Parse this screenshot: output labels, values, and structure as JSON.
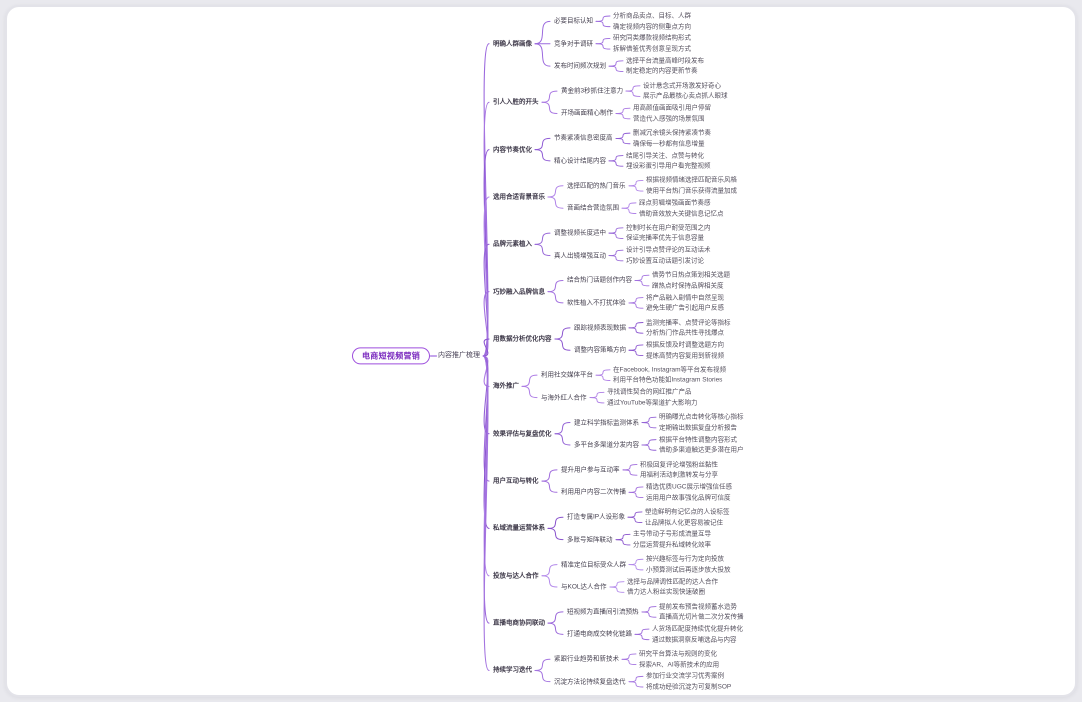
{
  "app": {
    "background": "#e9e9ee",
    "card_bg": "#ffffff",
    "card_border": "#e3e3e9",
    "line_base_color": "#a06ee0"
  },
  "root": {
    "text": "电商短视频营销",
    "border_color": "#9d4edd",
    "text_color": "#7b2cbf"
  },
  "level1": {
    "text": "内容推广梳理"
  },
  "branches": [
    {
      "text": "明确人群画像",
      "color": "#9c6ade",
      "children": [
        {
          "text": "必要目标认知",
          "children": [
            "分析商品卖点、目标、人群",
            "确定视频内容的侧重点方向"
          ]
        },
        {
          "text": "竞争对手调研",
          "children": [
            "研究同类爆款视频结构形式",
            "拆解借鉴优秀创意呈现方式"
          ]
        },
        {
          "text": "发布时间频次规划",
          "children": [
            "选择平台流量高峰时段发布",
            "制定稳定的内容更新节奏"
          ]
        }
      ]
    },
    {
      "text": "引人入胜的开头",
      "color": "#a876e2",
      "children": [
        {
          "text": "黄金前3秒抓住注意力",
          "children": [
            "设计悬念式开场激发好奇心",
            "展示产品最核心卖点抓人眼球"
          ]
        },
        {
          "text": "开场画面精心制作",
          "children": [
            "用高颜值画面吸引用户停留",
            "营造代入感强的场景氛围"
          ]
        }
      ]
    },
    {
      "text": "内容节奏优化",
      "color": "#8f5bd5",
      "children": [
        {
          "text": "节奏紧凑信息密度高",
          "children": [
            "删减冗余镜头保持紧凑节奏",
            "确保每一秒都有信息增量"
          ]
        },
        {
          "text": "精心设计结尾内容",
          "children": [
            "结尾引导关注、点赞与转化",
            "埋设彩蛋引导用户看完整视频"
          ]
        }
      ]
    },
    {
      "text": "选用合适背景音乐",
      "color": "#b083e8",
      "children": [
        {
          "text": "选择匹配的热门音乐",
          "children": [
            "根据视频情绪选择匹配音乐风格",
            "使用平台热门音乐获得流量加成"
          ]
        },
        {
          "text": "音画结合营造氛围",
          "children": [
            "踩点剪辑增强画面节奏感",
            "借助音效放大关键信息记忆点"
          ]
        }
      ]
    },
    {
      "text": "品牌元素植入",
      "color": "#9868d8",
      "children": [
        {
          "text": "调整视频长度适中",
          "children": [
            "控制时长在用户耐受范围之内",
            "保证完播率优先于信息容量"
          ]
        },
        {
          "text": "真人出镜增强互动",
          "children": [
            "设计引导点赞评论的互动话术",
            "巧妙设置互动话题引发讨论"
          ]
        }
      ]
    },
    {
      "text": "巧妙融入品牌信息",
      "color": "#a371df",
      "children": [
        {
          "text": "结合热门话题创作内容",
          "children": [
            "借势节日热点策划相关选题",
            "蹭热点时保持品牌相关度"
          ]
        },
        {
          "text": "软性植入不打扰体验",
          "children": [
            "将产品融入剧情中自然呈现",
            "避免生硬广告引起用户反感"
          ]
        }
      ]
    },
    {
      "text": "用数据分析优化内容",
      "color": "#8c56d0",
      "children": [
        {
          "text": "跟踪视频表现数据",
          "children": [
            "监测完播率、点赞评论等指标",
            "分析热门作品共性寻找爆点"
          ]
        },
        {
          "text": "调整内容策略方向",
          "children": [
            "根据反馈及时调整选题方向",
            "提炼高赞内容复用到新视频"
          ]
        }
      ]
    },
    {
      "text": "海外推广",
      "color": "#ad7ce5",
      "children": [
        {
          "text": "利用社交媒体平台",
          "children": [
            "在Facebook, Instagram等平台发布视频",
            "利用平台特色功能如Instagram Stories"
          ]
        },
        {
          "text": "与海外红人合作",
          "children": [
            "寻找调性契合的网红推广产品",
            "通过YouTube等渠道扩大影响力"
          ]
        }
      ]
    },
    {
      "text": "效果评估与复盘优化",
      "color": "#9463d6",
      "children": [
        {
          "text": "建立科学指标监测体系",
          "children": [
            "明确曝光点击转化等核心指标",
            "定期输出数据复盘分析报告"
          ]
        },
        {
          "text": "多平台多渠道分发内容",
          "children": [
            "根据平台特性调整内容形式",
            "借助多渠道触达更多潜在用户"
          ]
        }
      ]
    },
    {
      "text": "用户互动与转化",
      "color": "#a06cdc",
      "children": [
        {
          "text": "提升用户参与互动率",
          "children": [
            "积极回复评论增强粉丝黏性",
            "用福利活动刺激转发与分享"
          ]
        },
        {
          "text": "利用用户内容二次传播",
          "children": [
            "精选优质UGC展示增强信任感",
            "运用用户故事强化品牌可信度"
          ]
        }
      ]
    },
    {
      "text": "私域流量运营体系",
      "color": "#8851cc",
      "children": [
        {
          "text": "打造专属IP人设形象",
          "children": [
            "塑造鲜明有记忆点的人设标签",
            "让品牌拟人化更容易被记住"
          ]
        },
        {
          "text": "多账号矩阵联动",
          "children": [
            "主号带动子号形成流量互导",
            "分层运营提升私域转化效率"
          ]
        }
      ]
    },
    {
      "text": "投放与达人合作",
      "color": "#b288ea",
      "children": [
        {
          "text": "精准定位目标受众人群",
          "children": [
            "按兴趣标签与行为定向投放",
            "小预算测试后再逐步放大投放"
          ]
        },
        {
          "text": "与KOL达人合作",
          "children": [
            "选择与品牌调性匹配的达人合作",
            "借力达人粉丝实现快速破圈"
          ]
        }
      ]
    },
    {
      "text": "直播电商协同联动",
      "color": "#9a66da",
      "children": [
        {
          "text": "短视频为直播间引流预热",
          "children": [
            "提前发布预告视频蓄水造势",
            "直播高光切片做二次分发传播"
          ]
        },
        {
          "text": "打通电商成交转化链路",
          "children": [
            "人货场匹配度持续优化提升转化",
            "通过数据洞察反哺选品与内容"
          ]
        }
      ]
    },
    {
      "text": "持续学习迭代",
      "color": "#a474e0",
      "children": [
        {
          "text": "紧跟行业趋势和新技术",
          "children": [
            "研究平台算法与规则的变化",
            "探索AR、AI等新技术的应用"
          ]
        },
        {
          "text": "沉淀方法论持续复盘迭代",
          "children": [
            "参加行业交流学习优秀案例",
            "将成功经验沉淀为可复制SOP"
          ]
        }
      ]
    }
  ]
}
